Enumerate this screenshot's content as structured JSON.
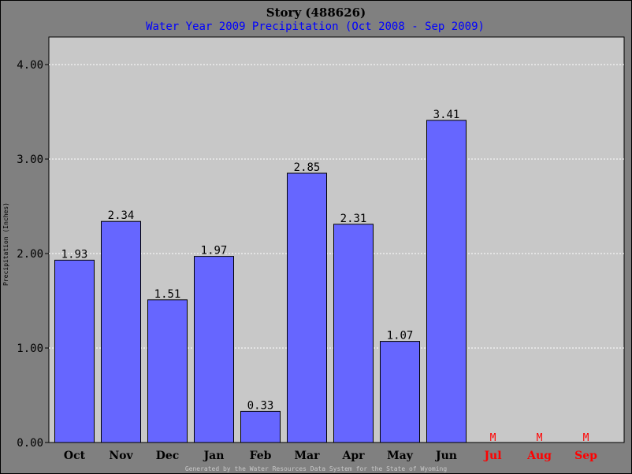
{
  "chart_data": {
    "type": "bar",
    "title": "Story (488626)",
    "subtitle": "Water Year 2009 Precipitation (Oct 2008 - Sep 2009)",
    "ylabel": "Precipitation (Inches)",
    "xlabel": "",
    "ylim": [
      0,
      4.0
    ],
    "yticks": [
      0,
      1,
      2,
      3,
      4
    ],
    "ytick_labels": [
      "0.00",
      "1.00",
      "2.00",
      "3.00",
      "4.00"
    ],
    "grid": true,
    "categories": [
      "Oct",
      "Nov",
      "Dec",
      "Jan",
      "Feb",
      "Mar",
      "Apr",
      "May",
      "Jun",
      "Jul",
      "Aug",
      "Sep"
    ],
    "values": [
      1.93,
      2.34,
      1.51,
      1.97,
      0.33,
      2.85,
      2.31,
      1.07,
      3.41,
      null,
      null,
      null
    ],
    "value_labels": [
      "1.93",
      "2.34",
      "1.51",
      "1.97",
      "0.33",
      "2.85",
      "2.31",
      "1.07",
      "3.41",
      "M",
      "M",
      "M"
    ],
    "bar_color": "#6666ff",
    "missing_color": "#ff0000",
    "plot_background": "#c8c8c8",
    "page_background": "#808080",
    "footer": "Generated by the Water Resources Data System for the State of Wyoming"
  }
}
